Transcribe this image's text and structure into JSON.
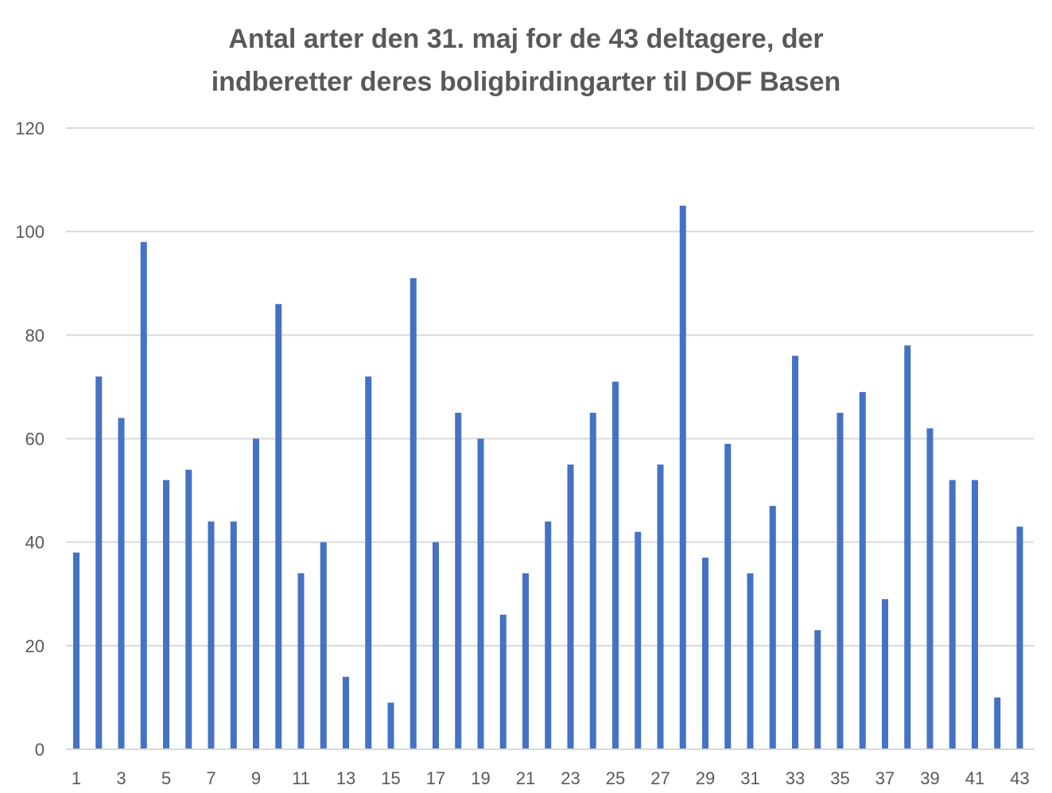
{
  "chart_data": {
    "type": "bar",
    "title_lines": [
      "Antal arter den 31. maj for de 43 deltagere, der",
      "indberetter deres boligbirdingarter til DOF Basen"
    ],
    "xlabel": "",
    "ylabel": "",
    "categories": [
      "1",
      "2",
      "3",
      "4",
      "5",
      "6",
      "7",
      "8",
      "9",
      "10",
      "11",
      "12",
      "13",
      "14",
      "15",
      "16",
      "17",
      "18",
      "19",
      "20",
      "21",
      "22",
      "23",
      "24",
      "25",
      "26",
      "27",
      "28",
      "29",
      "30",
      "31",
      "32",
      "33",
      "34",
      "35",
      "36",
      "37",
      "38",
      "39",
      "40",
      "41",
      "42",
      "43"
    ],
    "x_tick_labels_shown": [
      "1",
      "3",
      "5",
      "7",
      "9",
      "11",
      "13",
      "15",
      "17",
      "19",
      "21",
      "23",
      "25",
      "27",
      "29",
      "31",
      "33",
      "35",
      "37",
      "39",
      "41",
      "43"
    ],
    "values": [
      38,
      72,
      64,
      98,
      52,
      54,
      44,
      44,
      60,
      86,
      34,
      40,
      14,
      72,
      9,
      91,
      40,
      65,
      60,
      26,
      34,
      44,
      55,
      65,
      71,
      42,
      55,
      105,
      37,
      59,
      34,
      47,
      76,
      23,
      65,
      69,
      29,
      78,
      62,
      52,
      52,
      10,
      43
    ],
    "ylim": [
      0,
      120
    ],
    "y_ticks": [
      0,
      20,
      40,
      60,
      80,
      100,
      120
    ],
    "grid": true,
    "legend": "none",
    "colors": {
      "bar": "#4472C4",
      "grid": "#D9D9D9",
      "axis": "#D9D9D9",
      "title": "#595959",
      "tick_text": "#595959"
    }
  }
}
